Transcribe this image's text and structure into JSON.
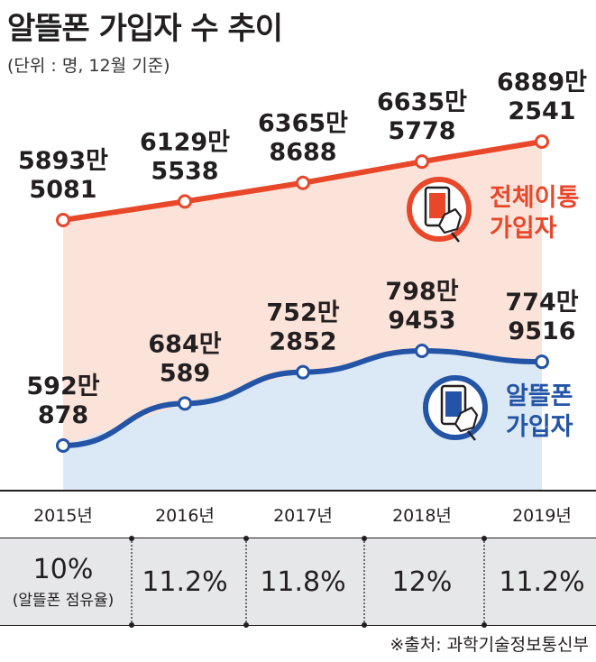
{
  "title": "알뜰폰 가입자 수 추이",
  "unit_note": "(단위 : 명, 12월 기준)",
  "source": "※출처: 과학기술정보통신부",
  "colors": {
    "total_line": "#e8472a",
    "total_fill": "#fbe3da",
    "mvno_line": "#2454a6",
    "mvno_fill": "#dbe9f6",
    "share_band": "#e6e7e8"
  },
  "legend": {
    "total": {
      "line1": "전체이통",
      "line2": "가입자",
      "icon": "smartphone-hand-icon"
    },
    "mvno": {
      "line1": "알뜰폰",
      "line2": "가입자",
      "icon": "smartphone-hand-icon"
    }
  },
  "chart_data": {
    "type": "line",
    "categories": [
      "2015년",
      "2016년",
      "2017년",
      "2018년",
      "2019년"
    ],
    "series": [
      {
        "name": "전체이통 가입자",
        "values": [
          58935081,
          61295538,
          63658688,
          66355778,
          68892541
        ],
        "labels": [
          [
            "5893만",
            "5081"
          ],
          [
            "6129만",
            "5538"
          ],
          [
            "6365만",
            "8688"
          ],
          [
            "6635만",
            "5778"
          ],
          [
            "6889만",
            "2541"
          ]
        ]
      },
      {
        "name": "알뜰폰 가입자",
        "values": [
          5920878,
          6840589,
          7522852,
          7989453,
          7749516
        ],
        "labels": [
          [
            "592만",
            "878"
          ],
          [
            "684만",
            "589"
          ],
          [
            "752만",
            "2852"
          ],
          [
            "798만",
            "9453"
          ],
          [
            "774만",
            "9516"
          ]
        ]
      }
    ]
  },
  "share": {
    "values": [
      "10%",
      "11.2%",
      "11.8%",
      "12%",
      "11.2%"
    ],
    "first_note": "(알뜰폰 점유율)"
  }
}
